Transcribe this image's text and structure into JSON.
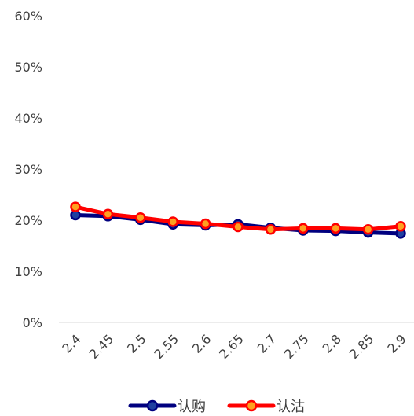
{
  "chart_data": {
    "type": "line",
    "title": "",
    "xlabel": "",
    "ylabel": "",
    "categories": [
      "2.4",
      "2.45",
      "2.5",
      "2.55",
      "2.6",
      "2.65",
      "2.7",
      "2.75",
      "2.8",
      "2.85",
      "2.9"
    ],
    "ylim": [
      0,
      0.6
    ],
    "yticks": [
      "0%",
      "10%",
      "20%",
      "30%",
      "40%",
      "50%",
      "60%"
    ],
    "grid": false,
    "legend_position": "bottom",
    "series": [
      {
        "name": "认购",
        "color": "#00007f",
        "marker_fill": "#1f3fa0",
        "values": [
          0.21,
          0.208,
          0.201,
          0.192,
          0.19,
          0.192,
          0.185,
          0.18,
          0.179,
          0.176,
          0.174
        ]
      },
      {
        "name": "认沽",
        "color": "#ff0000",
        "marker_fill": "#ffa020",
        "values": [
          0.226,
          0.212,
          0.205,
          0.197,
          0.193,
          0.187,
          0.182,
          0.184,
          0.184,
          0.182,
          0.188
        ]
      }
    ]
  }
}
